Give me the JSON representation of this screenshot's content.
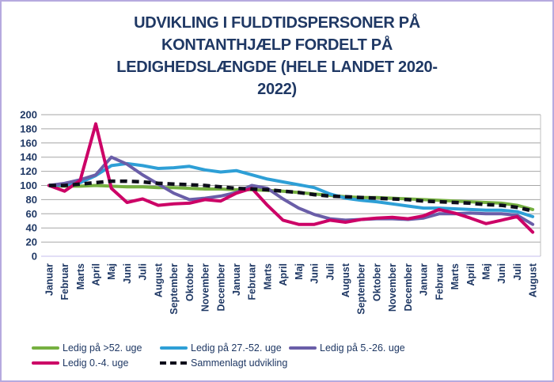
{
  "title": "UDVIKLING I FULDTIDSPERSONER PÅ KONTANTHJÆLP FORDELT PÅ LEDIGHEDSLÆNGDE (HELE LANDET 2020-2022)",
  "title_lines": [
    "UDVIKLING I FULDTIDSPERSONER PÅ",
    "KONTANTHJÆLP FORDELT PÅ",
    "LEDIGHEDSLÆNGDE (HELE LANDET 2020-",
    "2022)"
  ],
  "colors": {
    "frame_border": "#B6AADF",
    "title_text": "#1F3864",
    "axis_text": "#1F3864",
    "gridline": "#A6A6A6",
    "baseline": "#C6BCEC",
    "plot_border": "#BFBFBF"
  },
  "chart_data": {
    "type": "line",
    "title": "UDVIKLING I FULDTIDSPERSONER PÅ KONTANTHJÆLP FORDELT PÅ LEDIGHEDSLÆNGDE (HELE LANDET 2020-2022)",
    "xlabel": "",
    "ylabel": "",
    "ylim": [
      0,
      200
    ],
    "yticks": [
      0,
      20,
      40,
      60,
      80,
      100,
      120,
      140,
      160,
      180,
      200
    ],
    "grid": "horizontal",
    "legend_position": "bottom",
    "x": [
      "Januar",
      "Februar",
      "Marts",
      "April",
      "Maj",
      "Juni",
      "Juli",
      "August",
      "September",
      "Oktober",
      "November",
      "December",
      "Januar",
      "Februar",
      "Marts",
      "April",
      "Maj",
      "Juni",
      "Juli",
      "August",
      "September",
      "Oktober",
      "November",
      "December",
      "Januar",
      "Februar",
      "Marts",
      "April",
      "Maj",
      "Juni",
      "Juli",
      "August"
    ],
    "series": [
      {
        "id": "ledig-over-52-uge",
        "name": "Ledig på >52. uge",
        "color": "#76B041",
        "style": "solid",
        "values": [
          100,
          99,
          99,
          100,
          99,
          98,
          98,
          97,
          97,
          96,
          95,
          95,
          94,
          94,
          93,
          92,
          90,
          88,
          86,
          84,
          83,
          83,
          82,
          81,
          80,
          79,
          78,
          77,
          76,
          75,
          72,
          66
        ]
      },
      {
        "id": "ledig-27-52-uge",
        "name": "Ledig på 27.-52. uge",
        "color": "#2E9FD6",
        "style": "solid",
        "values": [
          100,
          101,
          104,
          114,
          128,
          131,
          128,
          124,
          125,
          127,
          122,
          119,
          121,
          115,
          109,
          105,
          101,
          97,
          88,
          82,
          79,
          77,
          74,
          71,
          68,
          68,
          67,
          66,
          65,
          65,
          63,
          56
        ]
      },
      {
        "id": "ledig-5-26-uge",
        "name": "Ledig på 5.-26. uge",
        "color": "#6A5EA8",
        "style": "solid",
        "values": [
          100,
          103,
          108,
          115,
          140,
          130,
          115,
          102,
          89,
          80,
          82,
          85,
          90,
          100,
          96,
          81,
          68,
          59,
          53,
          51,
          52,
          53,
          53,
          52,
          54,
          60,
          60,
          61,
          60,
          60,
          58,
          45
        ]
      },
      {
        "id": "ledig-0-4-uge",
        "name": "Ledig 0.-4. uge",
        "color": "#CC0066",
        "style": "solid",
        "values": [
          100,
          92,
          107,
          187,
          96,
          76,
          81,
          72,
          74,
          75,
          80,
          78,
          89,
          96,
          72,
          51,
          45,
          45,
          51,
          48,
          52,
          54,
          55,
          53,
          57,
          66,
          61,
          54,
          46,
          51,
          56,
          34
        ]
      },
      {
        "id": "sammenlagt-udvikling",
        "name": "Sammenlagt udvikling",
        "color": "#0D0D1A",
        "style": "dashed",
        "values": [
          100,
          100,
          102,
          104,
          106,
          106,
          105,
          103,
          102,
          101,
          100,
          98,
          96,
          95,
          94,
          92,
          90,
          87,
          85,
          84,
          83,
          82,
          81,
          80,
          78,
          77,
          76,
          75,
          73,
          72,
          69,
          64
        ]
      }
    ]
  }
}
